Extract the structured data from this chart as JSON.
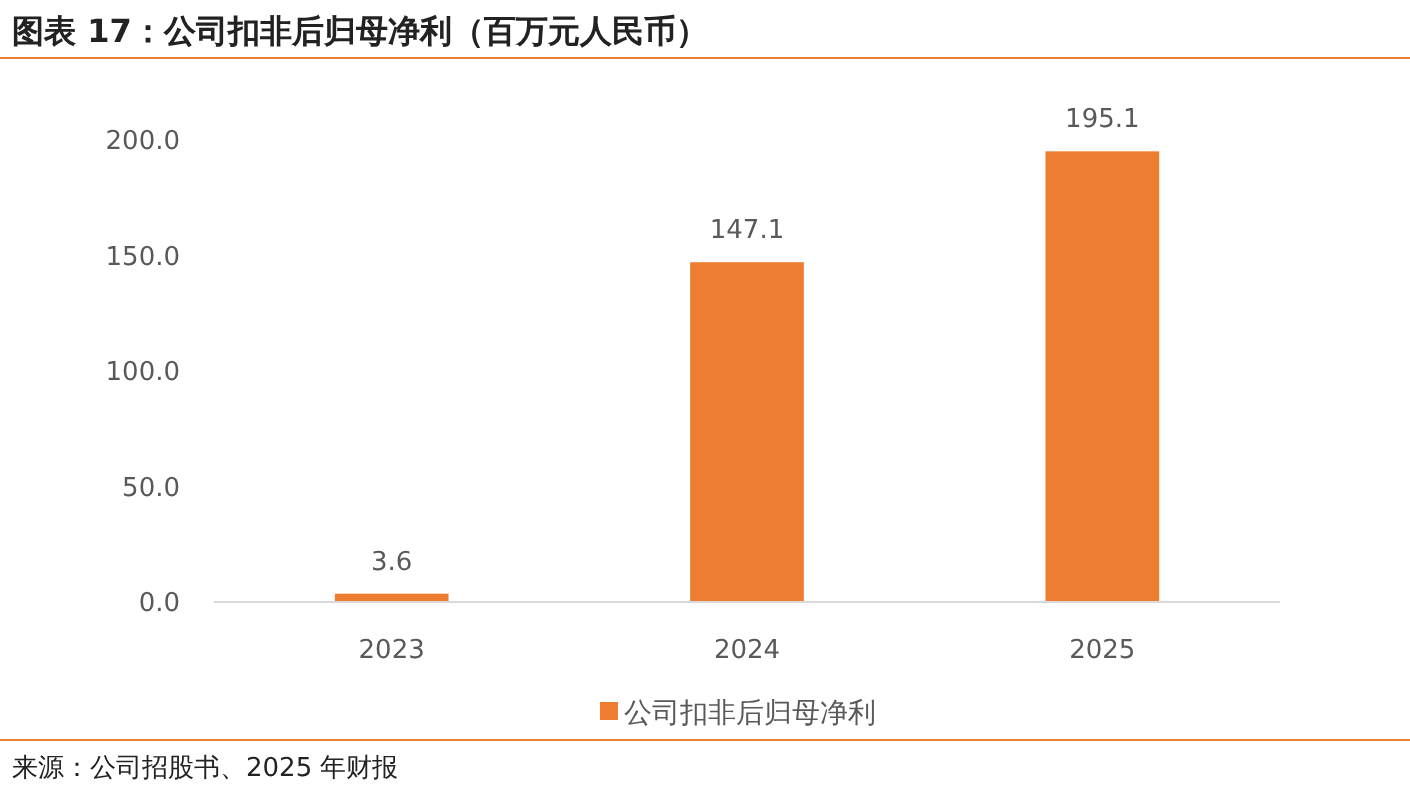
{
  "chart_data": {
    "type": "bar",
    "title": "图表 17：公司扣非后归母净利（百万元人民币）",
    "categories": [
      "2023",
      "2024",
      "2025"
    ],
    "series": [
      {
        "name": "公司扣非后归母净利",
        "color": "#ed7d31",
        "values": [
          3.6,
          147.1,
          195.1
        ]
      }
    ],
    "ylim": [
      0,
      200
    ],
    "yticks": [
      {
        "value": 0,
        "label": "0.0"
      },
      {
        "value": 50,
        "label": "50.0"
      },
      {
        "value": 100,
        "label": "100.0"
      },
      {
        "value": 150,
        "label": "150.0"
      },
      {
        "value": 200,
        "label": "200.0"
      }
    ],
    "data_labels": true,
    "grid": false,
    "legend": "bottom",
    "annotations": [
      "来源：公司招股书、2025 年财报"
    ]
  }
}
